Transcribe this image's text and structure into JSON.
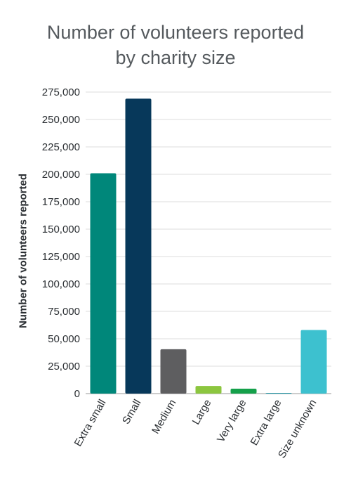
{
  "chart_data": {
    "type": "bar",
    "title": "Number of volunteers reported",
    "subtitle": "by charity size",
    "xlabel": "",
    "ylabel": "Number of volunteers reported",
    "ylim": [
      0,
      275000
    ],
    "yticks": [
      0,
      25000,
      50000,
      75000,
      100000,
      125000,
      150000,
      175000,
      200000,
      225000,
      250000,
      275000
    ],
    "ytick_labels": [
      "0",
      "25,000",
      "50,000",
      "75,000",
      "100,000",
      "125,000",
      "150,000",
      "175,000",
      "200,000",
      "225,000",
      "250,000",
      "275,000"
    ],
    "grid": true,
    "legend": "none",
    "categories": [
      "Extra small",
      "Small",
      "Medium",
      "Large",
      "Very large",
      "Extra large",
      "Size unknown"
    ],
    "values": [
      201000,
      269000,
      40500,
      7000,
      4500,
      500,
      58000
    ],
    "colors": [
      "#00877a",
      "#07385a",
      "#5e5e60",
      "#8cc63f",
      "#14a04a",
      "#1f97a8",
      "#3dc1cf"
    ]
  }
}
